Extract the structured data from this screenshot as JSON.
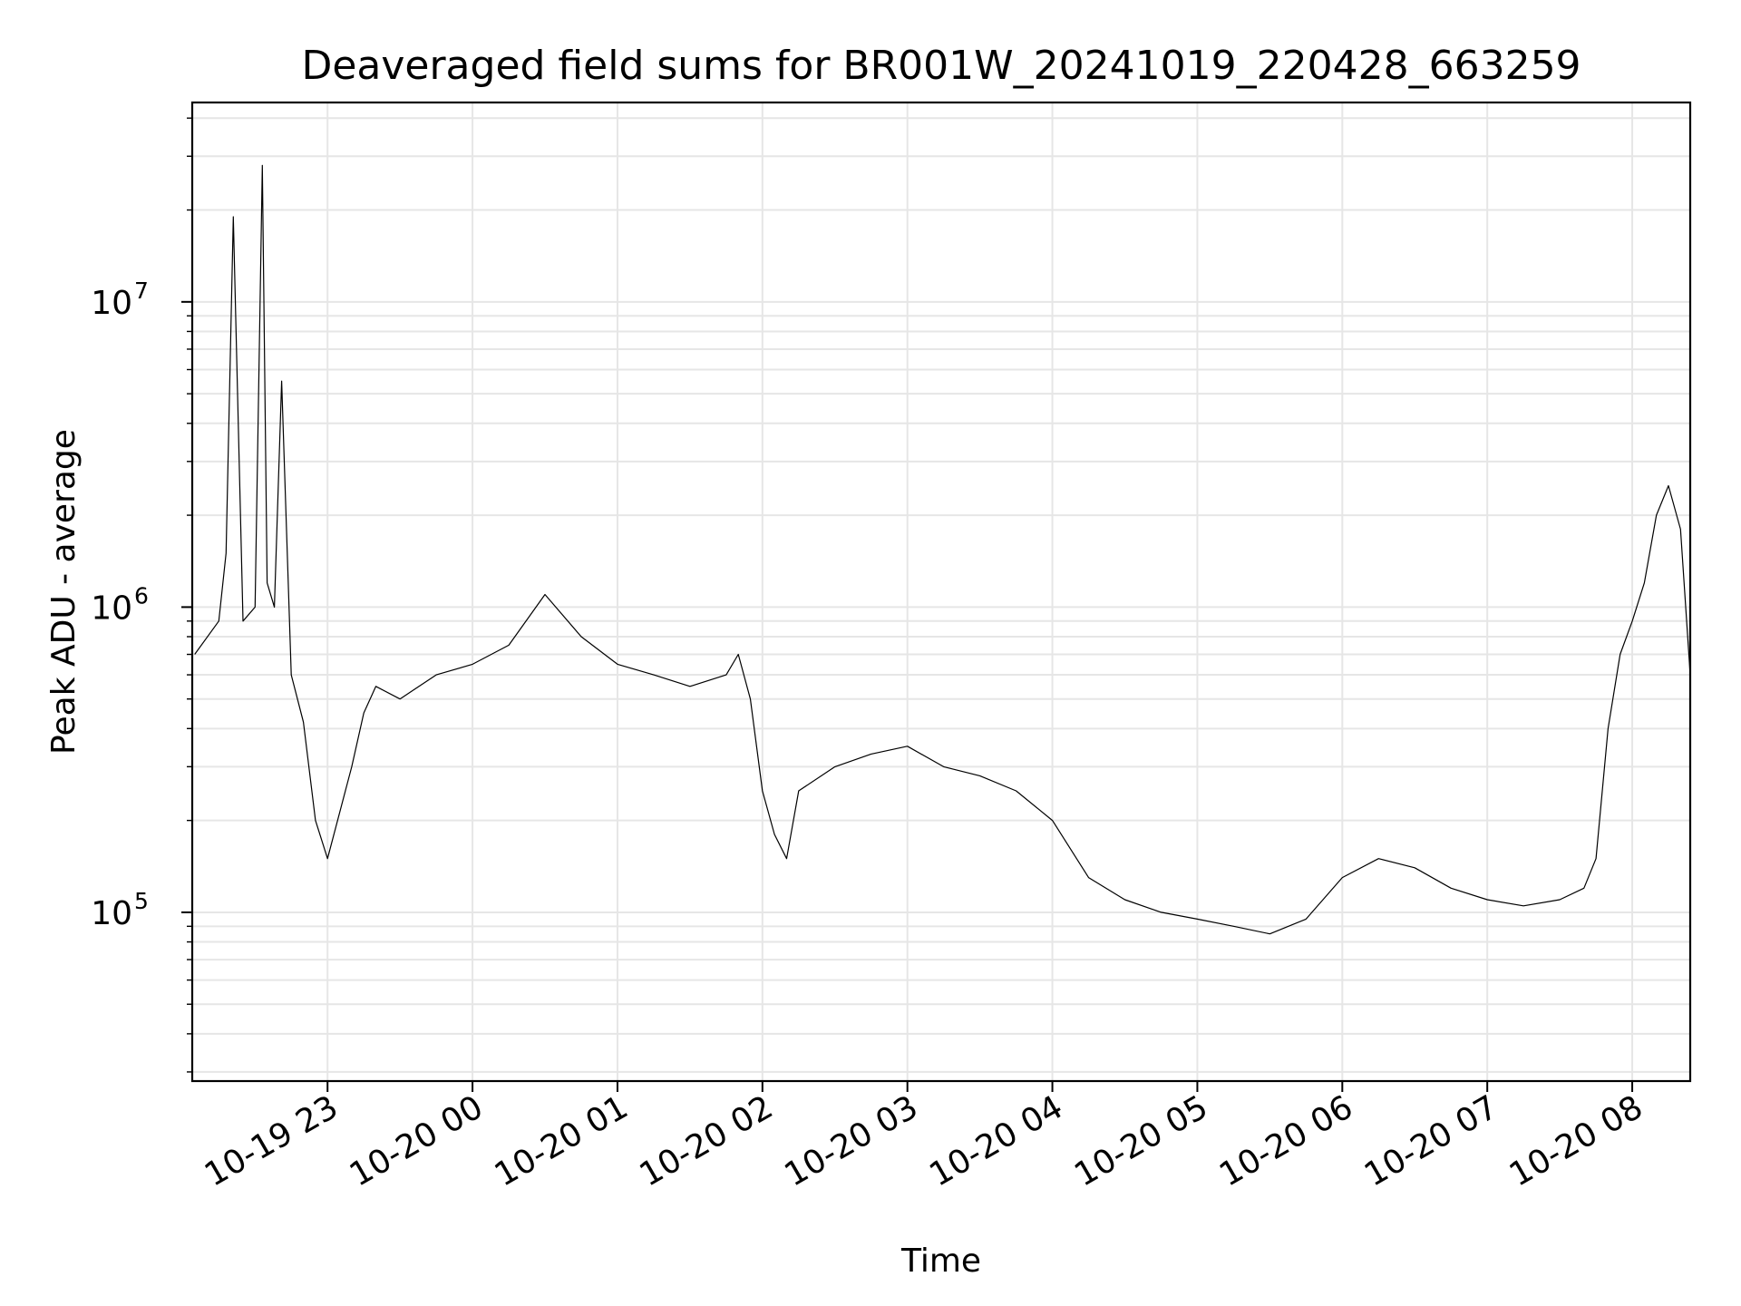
{
  "chart_data": {
    "type": "line",
    "title": "Deaveraged field sums for BR001W_20241019_220428_663259",
    "xlabel": "Time",
    "ylabel": "Peak ADU - average",
    "x_scale": "time",
    "y_scale": "log",
    "xlim": [
      "2024-10-19 22:04",
      "2024-10-20 08:24"
    ],
    "ylim": [
      28000,
      45000000
    ],
    "grid": "on",
    "legend": "none",
    "line_color": "#000000",
    "x_ticks": [
      {
        "value": "2024-10-19 23:00",
        "label": "10-19 23"
      },
      {
        "value": "2024-10-20 00:00",
        "label": "10-20 00"
      },
      {
        "value": "2024-10-20 01:00",
        "label": "10-20 01"
      },
      {
        "value": "2024-10-20 02:00",
        "label": "10-20 02"
      },
      {
        "value": "2024-10-20 03:00",
        "label": "10-20 03"
      },
      {
        "value": "2024-10-20 04:00",
        "label": "10-20 04"
      },
      {
        "value": "2024-10-20 05:00",
        "label": "10-20 05"
      },
      {
        "value": "2024-10-20 06:00",
        "label": "10-20 06"
      },
      {
        "value": "2024-10-20 07:00",
        "label": "10-20 07"
      },
      {
        "value": "2024-10-20 08:00",
        "label": "10-20 08"
      }
    ],
    "y_ticks": [
      {
        "value": 100000,
        "base": "10",
        "exponent": "5"
      },
      {
        "value": 1000000,
        "base": "10",
        "exponent": "6"
      },
      {
        "value": 10000000,
        "base": "10",
        "exponent": "7"
      }
    ],
    "series": [
      {
        "time": [
          "2024-10-19 22:05",
          "2024-10-19 22:15",
          "2024-10-19 22:18",
          "2024-10-19 22:21",
          "2024-10-19 22:25",
          "2024-10-19 22:30",
          "2024-10-19 22:33",
          "2024-10-19 22:35",
          "2024-10-19 22:38",
          "2024-10-19 22:41",
          "2024-10-19 22:45",
          "2024-10-19 22:50",
          "2024-10-19 22:55",
          "2024-10-19 23:00",
          "2024-10-19 23:10",
          "2024-10-19 23:15",
          "2024-10-19 23:20",
          "2024-10-19 23:30",
          "2024-10-19 23:45",
          "2024-10-20 00:00",
          "2024-10-20 00:15",
          "2024-10-20 00:30",
          "2024-10-20 00:45",
          "2024-10-20 01:00",
          "2024-10-20 01:15",
          "2024-10-20 01:30",
          "2024-10-20 01:45",
          "2024-10-20 01:50",
          "2024-10-20 01:55",
          "2024-10-20 02:00",
          "2024-10-20 02:05",
          "2024-10-20 02:10",
          "2024-10-20 02:15",
          "2024-10-20 02:30",
          "2024-10-20 02:45",
          "2024-10-20 03:00",
          "2024-10-20 03:15",
          "2024-10-20 03:30",
          "2024-10-20 03:45",
          "2024-10-20 04:00",
          "2024-10-20 04:15",
          "2024-10-20 04:30",
          "2024-10-20 04:45",
          "2024-10-20 05:00",
          "2024-10-20 05:15",
          "2024-10-20 05:30",
          "2024-10-20 05:45",
          "2024-10-20 06:00",
          "2024-10-20 06:15",
          "2024-10-20 06:30",
          "2024-10-20 06:45",
          "2024-10-20 07:00",
          "2024-10-20 07:15",
          "2024-10-20 07:30",
          "2024-10-20 07:40",
          "2024-10-20 07:45",
          "2024-10-20 07:50",
          "2024-10-20 07:55",
          "2024-10-20 08:00",
          "2024-10-20 08:05",
          "2024-10-20 08:10",
          "2024-10-20 08:15",
          "2024-10-20 08:20",
          "2024-10-20 08:24"
        ],
        "values": [
          700000,
          900000,
          1500000,
          19000000,
          900000,
          1000000,
          28000000,
          1200000,
          1000000,
          5500000,
          600000,
          420000,
          200000,
          150000,
          300000,
          450000,
          550000,
          500000,
          600000,
          650000,
          750000,
          1100000,
          800000,
          650000,
          600000,
          550000,
          600000,
          700000,
          500000,
          250000,
          180000,
          150000,
          250000,
          300000,
          330000,
          350000,
          300000,
          280000,
          250000,
          200000,
          130000,
          110000,
          100000,
          95000,
          90000,
          85000,
          95000,
          130000,
          150000,
          140000,
          120000,
          110000,
          105000,
          110000,
          120000,
          150000,
          400000,
          700000,
          900000,
          1200000,
          2000000,
          2500000,
          1800000,
          600000
        ]
      }
    ]
  }
}
